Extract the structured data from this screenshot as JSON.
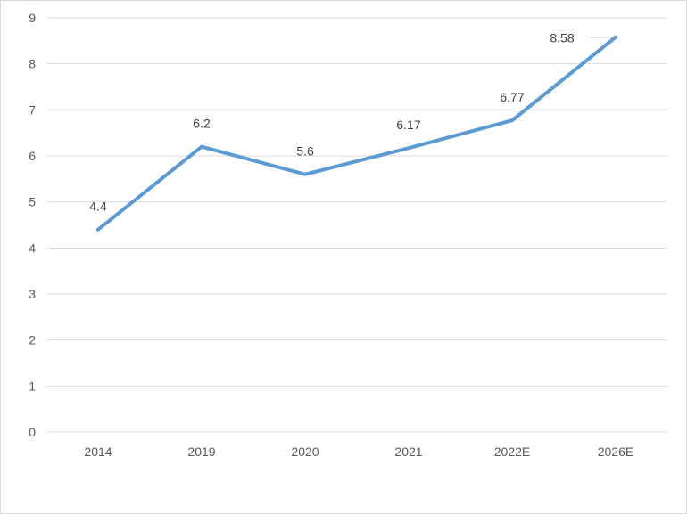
{
  "chart_data": {
    "type": "line",
    "categories": [
      "2014",
      "2019",
      "2020",
      "2021",
      "2022E",
      "2026E"
    ],
    "values": [
      4.4,
      6.2,
      5.6,
      6.17,
      6.77,
      8.58
    ],
    "value_labels": [
      "4.4",
      "6.2",
      "5.6",
      "6.17",
      "6.77",
      "8.58"
    ],
    "ylim": [
      0,
      9
    ],
    "yticks": [
      "0",
      "1",
      "2",
      "3",
      "4",
      "5",
      "6",
      "7",
      "8",
      "9"
    ],
    "grid": "horizontal",
    "title": "",
    "xlabel": "",
    "ylabel": "",
    "colors": {
      "line": "#5b9bd5",
      "grid": "#d9d9d9",
      "axis_text": "#595959",
      "label_text": "#404040"
    }
  }
}
